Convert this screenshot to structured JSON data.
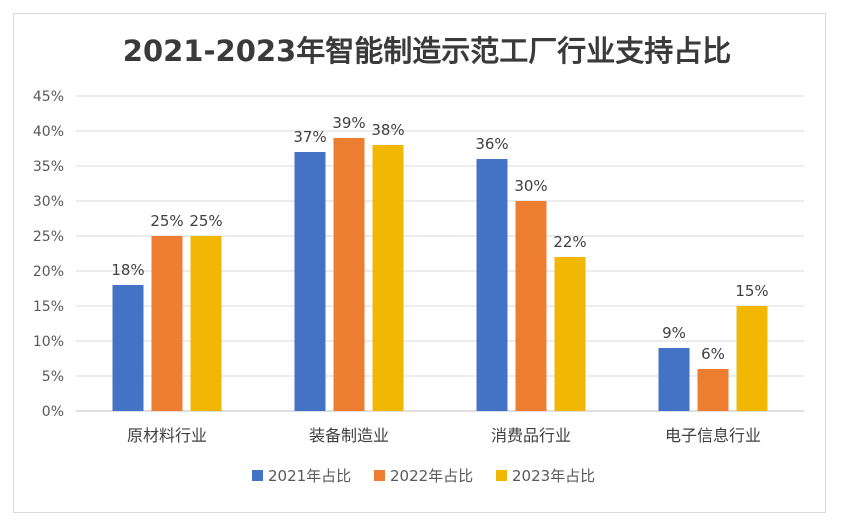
{
  "chart_data": {
    "type": "bar",
    "title": "2021-2023年智能制造示范工厂行业支持占比",
    "categories": [
      "原材料行业",
      "装备制造业",
      "消费品行业",
      "电子信息行业"
    ],
    "series": [
      {
        "name": "2021年占比",
        "color": "#4472C4",
        "values": [
          18,
          37,
          36,
          9
        ]
      },
      {
        "name": "2022年占比",
        "color": "#ED7D31",
        "values": [
          25,
          39,
          30,
          6
        ]
      },
      {
        "name": "2023年占比",
        "color": "#F2B705",
        "values": [
          25,
          38,
          22,
          15
        ]
      }
    ],
    "ylim": [
      0,
      45
    ],
    "yticks": [
      0,
      5,
      10,
      15,
      20,
      25,
      30,
      35,
      40,
      45
    ],
    "ytick_labels": [
      "0%",
      "5%",
      "10%",
      "15%",
      "20%",
      "25%",
      "30%",
      "35%",
      "40%",
      "45%"
    ],
    "data_labels": [
      [
        "18%",
        "37%",
        "36%",
        "9%"
      ],
      [
        "25%",
        "39%",
        "30%",
        "6%"
      ],
      [
        "25%",
        "38%",
        "22%",
        "15%"
      ]
    ],
    "xlabel": "",
    "ylabel": "",
    "grid": true,
    "legend_position": "bottom"
  }
}
